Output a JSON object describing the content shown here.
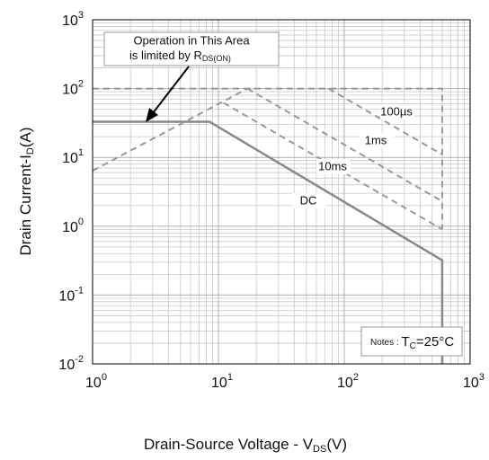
{
  "chart_data": {
    "type": "line",
    "log_x": true,
    "log_y": true,
    "grid": true,
    "x_label": {
      "text": "Drain-Source Voltage - ",
      "symbol": "V",
      "sub": "DS",
      "unit": "(V)"
    },
    "y_label": {
      "text": "Drain Current-I",
      "sub": "D",
      "unit": "(A)"
    },
    "xlim": [
      1,
      1000
    ],
    "ylim": [
      0.01,
      1000
    ],
    "xticks": [
      {
        "value": 1,
        "label": "10",
        "exponent": "0"
      },
      {
        "value": 10,
        "label": "10",
        "exponent": "1"
      },
      {
        "value": 100,
        "label": "10",
        "exponent": "2"
      },
      {
        "value": 1000,
        "label": "10",
        "exponent": "3"
      }
    ],
    "yticks": [
      {
        "value": 0.01,
        "label": "10",
        "exponent": "-2"
      },
      {
        "value": 0.1,
        "label": "10",
        "exponent": "-1"
      },
      {
        "value": 1,
        "label": "10",
        "exponent": "0"
      },
      {
        "value": 10,
        "label": "10",
        "exponent": "1"
      },
      {
        "value": 100,
        "label": "10",
        "exponent": "2"
      },
      {
        "value": 1000,
        "label": "10",
        "exponent": "3"
      }
    ],
    "series": [
      {
        "name": "DC",
        "color": "#888888",
        "dashed": false,
        "x": [
          1,
          8.5,
          600,
          600
        ],
        "values": [
          33,
          33,
          0.32,
          0.01
        ]
      },
      {
        "name": "100µs",
        "color": "#999999",
        "dashed": true,
        "x": [
          75,
          600
        ],
        "values": [
          100,
          11
        ]
      },
      {
        "name": "1ms",
        "color": "#999999",
        "dashed": true,
        "x": [
          17,
          600
        ],
        "values": [
          100,
          2.3
        ]
      },
      {
        "name": "10ms",
        "color": "#999999",
        "dashed": true,
        "x": [
          11,
          600
        ],
        "values": [
          62,
          0.9
        ]
      },
      {
        "color": "#999999",
        "dashed": true,
        "x": [
          1,
          17
        ],
        "values": [
          6.4,
          100
        ]
      },
      {
        "color": "#999999",
        "dashed": true,
        "x": [
          1,
          600,
          600
        ],
        "values": [
          100,
          100,
          0.9
        ]
      }
    ],
    "annotation": {
      "line1": "Operation in This Area",
      "line2": "is limited by ",
      "symbol": "R",
      "sub": "DS(ON)"
    },
    "notes": {
      "text": "Notes : ",
      "symbol": "T",
      "sub": "C",
      "rest": "=25°C"
    }
  }
}
